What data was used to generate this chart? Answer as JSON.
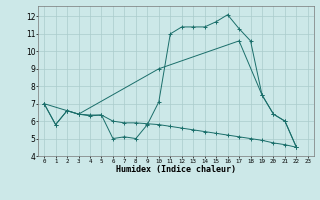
{
  "bg_color": "#cce8e8",
  "grid_color": "#aacccc",
  "line_color": "#1a6e6a",
  "xlabel": "Humidex (Indice chaleur)",
  "xlim": [
    -0.5,
    23.5
  ],
  "ylim": [
    4,
    12.6
  ],
  "yticks": [
    4,
    5,
    6,
    7,
    8,
    9,
    10,
    11,
    12
  ],
  "xticks": [
    0,
    1,
    2,
    3,
    4,
    5,
    6,
    7,
    8,
    9,
    10,
    11,
    12,
    13,
    14,
    15,
    16,
    17,
    18,
    19,
    20,
    21,
    22,
    23
  ],
  "line1_x": [
    0,
    1,
    2,
    3,
    4,
    5,
    6,
    7,
    8,
    9,
    10,
    11,
    12,
    13,
    14,
    15,
    16,
    17,
    18,
    19,
    20,
    21,
    22
  ],
  "line1_y": [
    7.0,
    5.8,
    6.6,
    6.4,
    6.35,
    6.35,
    5.0,
    5.1,
    5.0,
    5.8,
    7.1,
    11.0,
    11.4,
    11.4,
    11.4,
    11.7,
    12.1,
    11.3,
    10.6,
    7.5,
    6.4,
    6.0,
    4.5
  ],
  "line2_x": [
    0,
    2,
    3,
    10,
    17,
    19,
    20,
    21,
    22
  ],
  "line2_y": [
    7.0,
    6.6,
    6.4,
    9.0,
    10.6,
    7.5,
    6.4,
    6.0,
    4.5
  ],
  "line3_x": [
    0,
    1,
    2,
    3,
    4,
    5,
    6,
    7,
    8,
    9,
    10,
    11,
    12,
    13,
    14,
    15,
    16,
    17,
    18,
    19,
    20,
    21,
    22
  ],
  "line3_y": [
    7.0,
    5.8,
    6.6,
    6.4,
    6.3,
    6.35,
    6.0,
    5.9,
    5.9,
    5.85,
    5.8,
    5.7,
    5.6,
    5.5,
    5.4,
    5.3,
    5.2,
    5.1,
    5.0,
    4.9,
    4.75,
    4.65,
    4.5
  ]
}
